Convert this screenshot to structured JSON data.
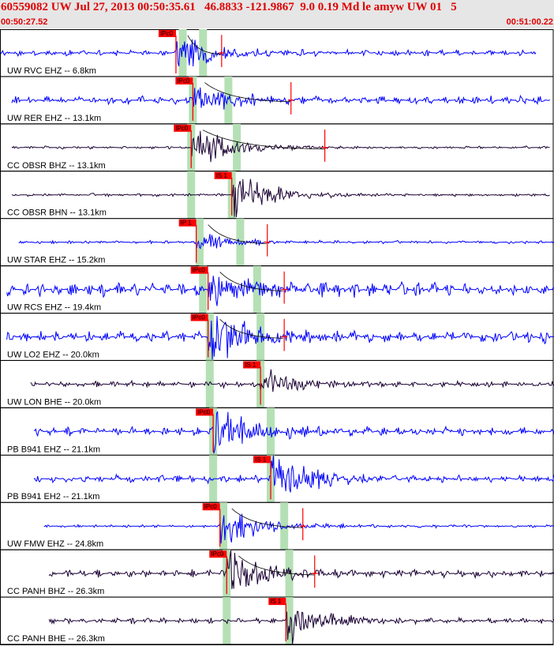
{
  "header": {
    "title": "60559082 UW Jul 27, 2013 00:50:35.61   46.8833 -121.9867  9.0 0.19 Md le amyw UW 01   5",
    "time_start": "00:50:27.52",
    "time_end": "00:51:00.22"
  },
  "chart_data": {
    "type": "line",
    "title": "",
    "xlabel": "",
    "ylabel": "",
    "x_range_time": [
      "00:50:27.52",
      "00:51:00.22"
    ],
    "x_range_seconds": [
      0,
      32.7
    ],
    "grid": false,
    "colors": {
      "vertical_channel": "#0000ff",
      "horizontal_channel": "#1a0033",
      "pick": "#ff0000",
      "window": "#b5e0b5",
      "coda_curve": "#000000",
      "divider": "#000000"
    },
    "traces": [
      {
        "label": "UW RVC EHZ -- 6.8km",
        "channel": "vertical",
        "data_start": 0.05,
        "data_end": 31.7,
        "pick": {
          "name": "IPc0",
          "t": 10.4
        },
        "windows": [
          10.8,
          12.0
        ],
        "coda_end": 13.1,
        "amp": 4,
        "burst": 10
      },
      {
        "label": "UW RER EHZ -- 13.1km",
        "channel": "vertical",
        "data_start": 0.7,
        "data_end": 32.5,
        "pick": {
          "name": "IPc0",
          "t": 11.4
        },
        "windows": [
          11.4,
          13.5
        ],
        "coda_end": 17.2,
        "amp": 6,
        "burst": 8
      },
      {
        "label": "CC OBSR BHZ -- 13.1km",
        "channel": "horizontal",
        "data_start": 0.7,
        "data_end": 32.5,
        "pick": {
          "name": "IPc0",
          "t": 11.3
        },
        "windows": [
          11.3,
          14.0
        ],
        "coda_end": 19.2,
        "amp": 2,
        "burst": 11
      },
      {
        "label": "CC OBSR BHN -- 13.1km",
        "channel": "horizontal",
        "data_start": 0.7,
        "data_end": 32.5,
        "pick": {
          "name": "IS 1",
          "t": 13.7
        },
        "windows": [
          11.3,
          13.7
        ],
        "coda_end": null,
        "amp": 2,
        "burst": 12
      },
      {
        "label": "UW STAR EHZ -- 15.2km",
        "channel": "vertical",
        "data_start": 1.1,
        "data_end": 32.8,
        "pick": {
          "name": "IP 1",
          "t": 11.6
        },
        "windows": [
          11.8,
          14.2
        ],
        "coda_end": 15.8,
        "amp": 2,
        "burst": 5
      },
      {
        "label": "UW RCS EHZ -- 19.4km",
        "channel": "vertical",
        "data_start": 0.4,
        "data_end": 33.3,
        "pick": {
          "name": "IPc0",
          "t": 12.3
        },
        "windows": [
          12.0,
          15.2
        ],
        "coda_end": 16.8,
        "amp": 10,
        "burst": 10
      },
      {
        "label": "UW LO2 EHZ -- 20.0km",
        "channel": "vertical",
        "data_start": 0.4,
        "data_end": 33.3,
        "pick": {
          "name": "IPc0",
          "t": 12.3
        },
        "windows": [
          12.4,
          15.4
        ],
        "coda_end": 16.8,
        "amp": 8,
        "burst": 14
      },
      {
        "label": "UW LON BHE -- 20.0km",
        "channel": "horizontal",
        "data_start": 1.8,
        "data_end": 33.3,
        "pick": {
          "name": "IS 1",
          "t": 15.4
        },
        "windows": [
          12.4,
          15.4
        ],
        "coda_end": null,
        "amp": 4,
        "burst": 7
      },
      {
        "label": "PB B941 EHZ -- 21.1km",
        "channel": "vertical",
        "data_start": 2.0,
        "data_end": 33.5,
        "pick": {
          "name": "IPc0",
          "t": 12.6
        },
        "windows": [
          12.6,
          16.0
        ],
        "coda_end": null,
        "amp": 6,
        "burst": 12
      },
      {
        "label": "PB B941 EH2 -- 21.1km",
        "channel": "vertical",
        "data_start": 2.0,
        "data_end": 33.5,
        "pick": {
          "name": "IS 1",
          "t": 16.0
        },
        "windows": [
          12.6,
          16.0
        ],
        "coda_end": null,
        "amp": 5,
        "burst": 14
      },
      {
        "label": "UW FMW EHZ -- 24.8km",
        "channel": "vertical",
        "data_start": 2.6,
        "data_end": 34.0,
        "pick": {
          "name": "IPc0",
          "t": 13.0
        },
        "windows": [
          13.2,
          16.8
        ],
        "coda_end": 17.9,
        "amp": 2,
        "burst": 12
      },
      {
        "label": "CC PANH BHZ -- 26.3km",
        "channel": "horizontal",
        "data_start": 2.9,
        "data_end": 33.6,
        "pick": {
          "name": "IPc0",
          "t": 13.4
        },
        "windows": [
          13.4,
          17.1
        ],
        "coda_end": 18.6,
        "amp": 5,
        "burst": 12
      },
      {
        "label": "CC PANH BHE -- 26.3km",
        "channel": "horizontal",
        "data_start": 2.9,
        "data_end": 34.3,
        "pick": {
          "name": "IS 1",
          "t": 16.9
        },
        "windows": [
          13.4,
          17.1
        ],
        "coda_end": null,
        "amp": 4,
        "burst": 12
      }
    ]
  }
}
